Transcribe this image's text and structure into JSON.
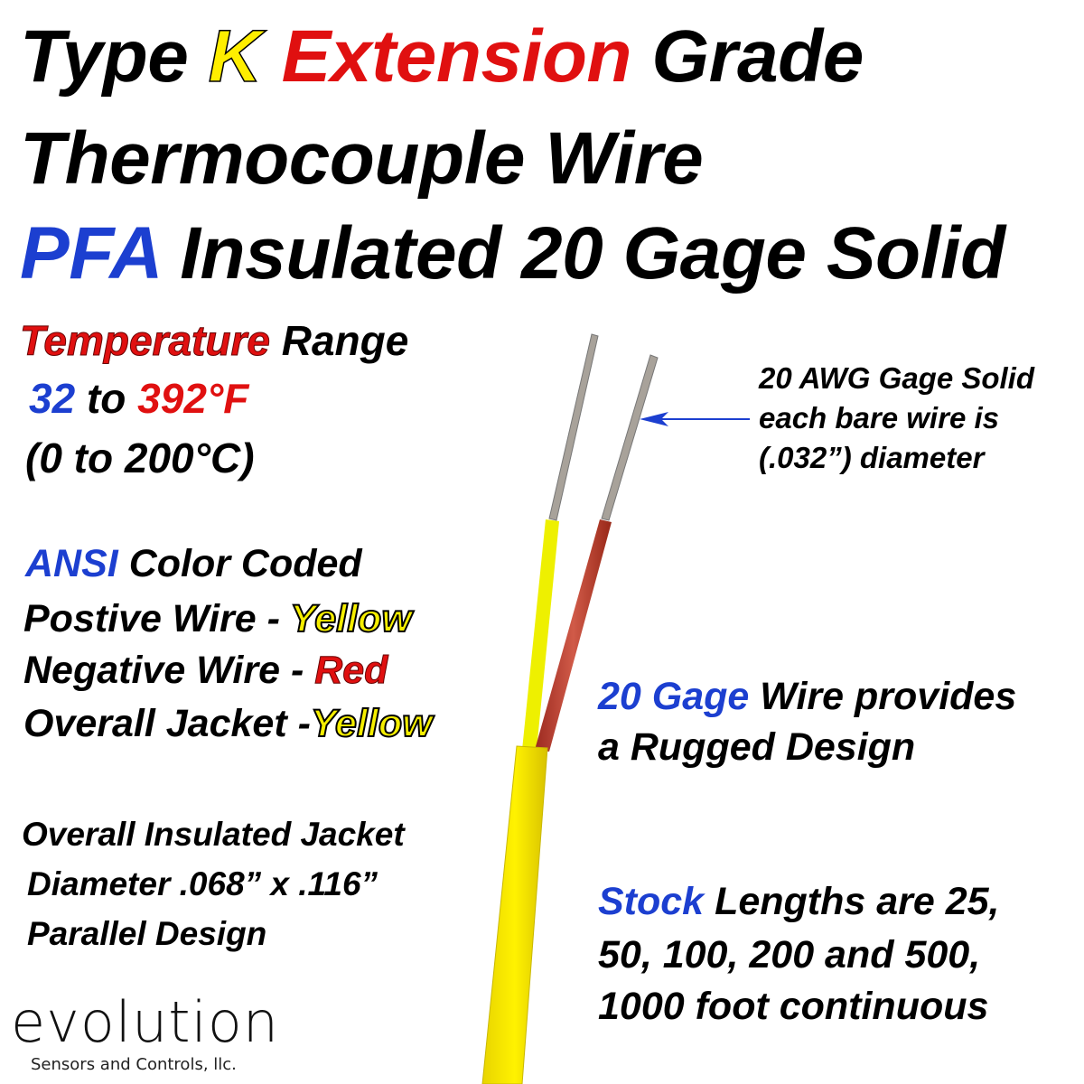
{
  "title": {
    "line1": [
      "Type",
      "K",
      "Extension",
      "Grade"
    ],
    "line2": "Thermocouple Wire",
    "line3": [
      "PFA",
      "Insulated 20 Gage Solid"
    ]
  },
  "temperature": {
    "label_a": "Temperature",
    "label_b": "Range",
    "low": "32",
    "to": "to",
    "high": "392°F",
    "celsius": "(0 to 200°C)"
  },
  "ansi": {
    "heading_a": "ANSI",
    "heading_b": "Color Coded",
    "positive_label": "Postive Wire -",
    "positive_color": "Yellow",
    "negative_label": "Negative Wire -",
    "negative_color": "Red",
    "jacket_label": "Overall Jacket -",
    "jacket_color": "Yellow"
  },
  "jacket": {
    "line1": "Overall Insulated Jacket",
    "line2": "Diameter .068” x .116”",
    "line3": "Parallel Design"
  },
  "callout": {
    "line1": "20 AWG Gage Solid",
    "line2": "each bare wire is",
    "line3": "(.032”) diameter"
  },
  "gage": {
    "highlight": "20 Gage",
    "rest1": "Wire provides",
    "line2": "a Rugged Design"
  },
  "stock": {
    "highlight": "Stock",
    "rest1": "Lengths are 25,",
    "line2": "50, 100, 200 and 500,",
    "line3": "1000 foot continuous"
  },
  "logo": {
    "word": "evolution",
    "tagline": "Sensors and Controls, llc."
  },
  "colors": {
    "blue": "#1c3fd0",
    "red": "#e01010",
    "yellow": "#f5ee00",
    "wire_red": "#b83a2c"
  }
}
